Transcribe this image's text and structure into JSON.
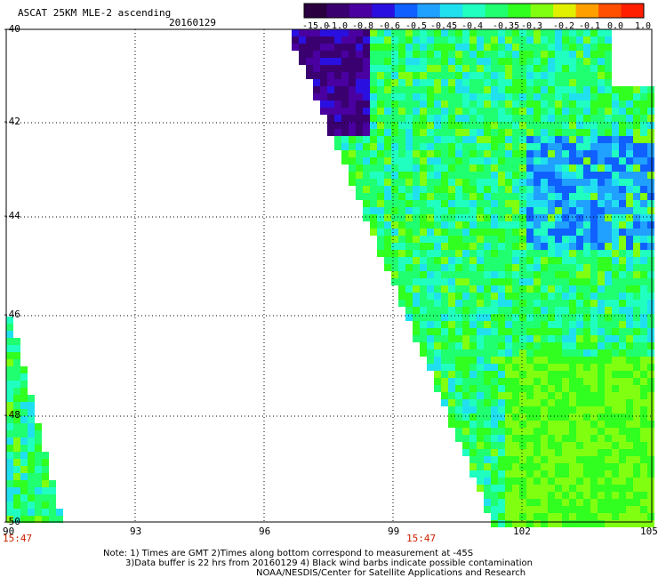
{
  "header": {
    "product": "ASCAT 25KM MLE-2 ascending",
    "date": "20160129"
  },
  "colorbar": {
    "labels": [
      "-15.0",
      "-1.0",
      "-0.8",
      "-0.6",
      "-0.5",
      "-0.45",
      "-0.4",
      "-0.35",
      "-0.3",
      "-0.2",
      "-0.1",
      "0.0",
      "1.0"
    ],
    "colors": [
      "#2a0040",
      "#3a0070",
      "#4a00a0",
      "#2a10e0",
      "#1060ff",
      "#20a0ff",
      "#20e0f0",
      "#20ffc0",
      "#20ff70",
      "#30ff20",
      "#80ff10",
      "#e0f000",
      "#ffa000",
      "#ff5000",
      "#ff1e00"
    ]
  },
  "map": {
    "lon_min": 90,
    "lon_max": 105,
    "lat_min": -50,
    "lat_max": -40,
    "lon_ticks": [
      "90",
      "93",
      "96",
      "99",
      "102",
      "105"
    ],
    "lat_ticks": [
      "-40",
      "-42",
      "-44",
      "-46",
      "-48",
      "-50"
    ],
    "times": [
      "15:47",
      "15:47"
    ]
  },
  "notes": {
    "line1": "Note: 1) Times are GMT 2)Times along bottom correspond to measurement at -45S",
    "line2": "3)Data buffer is 22 hrs from 20160129 4) Black wind barbs indicate possible contamination",
    "line3": "NOAA/NESDIS/Center for Satellite Applications and Research"
  }
}
